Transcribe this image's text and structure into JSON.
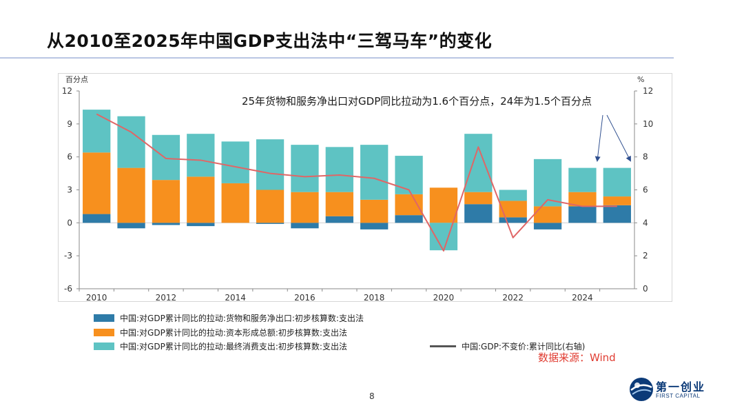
{
  "slide": {
    "title": "从2010至2025年中国GDP支出法中“三驾马车”的变化",
    "page_number": "8",
    "source": "数据来源：Wind",
    "logo": {
      "cn": "第一创业",
      "en": "FIRST CAPITAL"
    }
  },
  "colors": {
    "net_exports": "#2e7ba8",
    "capital": "#f7901e",
    "consumption": "#5ec3c3",
    "gdp_line": "#e06666",
    "axis": "#8a8a8a",
    "annotation_arrow": "#2f4f8f"
  },
  "chart_data": {
    "type": "bar",
    "stacked": true,
    "title": "",
    "ylabel_left": "百分点",
    "ylabel_right": "%",
    "ylim_left": [
      -6,
      12
    ],
    "ylim_right": [
      0,
      12
    ],
    "yticks_left": [
      "12",
      "9",
      "6",
      "3",
      "0",
      "-3",
      "-6"
    ],
    "yticks_right": [
      "12",
      "10",
      "8",
      "6",
      "4",
      "2",
      "0"
    ],
    "x_tick_labels": [
      "2010",
      "2012",
      "2014",
      "2016",
      "2018",
      "2020",
      "2022",
      "2024"
    ],
    "categories": [
      "2010",
      "2011",
      "2012",
      "2013",
      "2014",
      "2015",
      "2016",
      "2017",
      "2018",
      "2019",
      "2020",
      "2021",
      "2022",
      "2023",
      "2024",
      "2025"
    ],
    "series": [
      {
        "name": "中国:对GDP累计同比的拉动:货物和服务净出口:初步核算数:支出法",
        "axis": "left",
        "values": [
          0.8,
          -0.5,
          -0.2,
          -0.3,
          0.0,
          -0.1,
          -0.5,
          0.6,
          -0.6,
          0.7,
          0.0,
          1.7,
          0.5,
          -0.6,
          1.5,
          1.6
        ]
      },
      {
        "name": "中国:对GDP累计同比的拉动:资本形成总额:初步核算数:支出法",
        "axis": "left",
        "values": [
          5.6,
          5.0,
          3.9,
          4.2,
          3.6,
          3.0,
          2.8,
          2.2,
          2.1,
          1.9,
          3.2,
          1.1,
          1.5,
          1.5,
          1.3,
          0.8
        ]
      },
      {
        "name": "中国:对GDP累计同比的拉动:最终消费支出:初步核算数:支出法",
        "axis": "left",
        "values": [
          3.9,
          4.7,
          4.1,
          3.9,
          3.8,
          4.6,
          4.3,
          4.1,
          5.0,
          3.5,
          -2.5,
          5.3,
          1.0,
          4.3,
          2.2,
          2.6
        ]
      },
      {
        "name": "中国:GDP:不变价:累计同比(右轴)",
        "type": "line",
        "axis": "right",
        "values": [
          10.6,
          9.5,
          7.9,
          7.8,
          7.4,
          7.0,
          6.8,
          6.9,
          6.7,
          6.0,
          2.3,
          8.6,
          3.1,
          5.4,
          5.0,
          5.0
        ]
      }
    ],
    "annotation": {
      "text": "25年货物和服务净出口对GDP同比拉动为1.6个百分点，24年为1.5个百分点"
    },
    "legend": [
      "中国:对GDP累计同比的拉动:货物和服务净出口:初步核算数:支出法",
      "中国:对GDP累计同比的拉动:资本形成总额:初步核算数:支出法",
      "中国:对GDP累计同比的拉动:最终消费支出:初步核算数:支出法",
      "中国:GDP:不变价:累计同比(右轴)"
    ]
  }
}
